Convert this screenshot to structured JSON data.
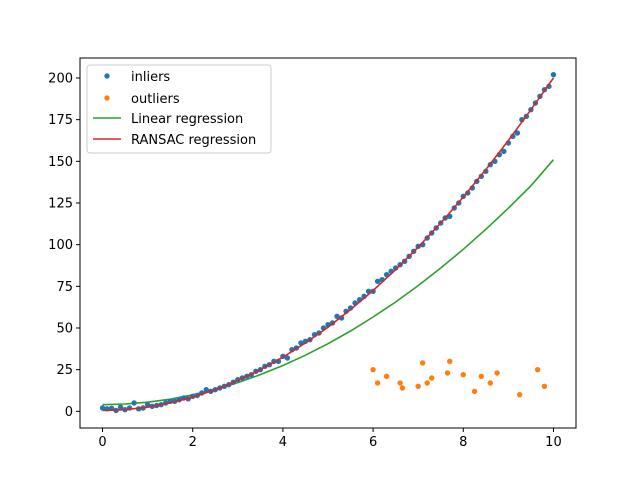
{
  "chart_data": {
    "type": "scatter",
    "xlim": [
      -0.5,
      10.5
    ],
    "ylim": [
      -10,
      212
    ],
    "xticks": [
      0,
      2,
      4,
      6,
      8,
      10
    ],
    "yticks": [
      0,
      25,
      50,
      75,
      100,
      125,
      150,
      175,
      200
    ],
    "legend_position": "top-left",
    "grid": false,
    "legend": {
      "inliers": "inliers",
      "outliers": "outliers",
      "linear": "Linear regression",
      "ransac": "RANSAC regression"
    },
    "colors": {
      "inliers": "#1f77b4",
      "outliers": "#ff7f0e",
      "linear": "#2ca02c",
      "ransac": "#d62728"
    },
    "inliers": {
      "x": [
        0.0,
        0.1,
        0.2,
        0.3,
        0.4,
        0.5,
        0.6,
        0.7,
        0.8,
        0.9,
        1.0,
        1.1,
        1.2,
        1.3,
        1.4,
        1.5,
        1.6,
        1.7,
        1.8,
        1.9,
        2.0,
        2.1,
        2.2,
        2.3,
        2.4,
        2.5,
        2.6,
        2.7,
        2.8,
        2.9,
        3.0,
        3.1,
        3.2,
        3.3,
        3.4,
        3.5,
        3.6,
        3.7,
        3.8,
        3.9,
        4.0,
        4.1,
        4.2,
        4.3,
        4.4,
        4.5,
        4.6,
        4.7,
        4.8,
        4.9,
        5.0,
        5.1,
        5.2,
        5.3,
        5.4,
        5.5,
        5.6,
        5.7,
        5.8,
        5.9,
        6.0,
        6.1,
        6.2,
        6.3,
        6.4,
        6.5,
        6.6,
        6.7,
        6.8,
        6.9,
        7.0,
        7.1,
        7.2,
        7.3,
        7.4,
        7.5,
        7.6,
        7.7,
        7.8,
        7.9,
        8.0,
        8.1,
        8.2,
        8.3,
        8.4,
        8.5,
        8.6,
        8.7,
        8.8,
        8.9,
        9.0,
        9.1,
        9.2,
        9.3,
        9.4,
        9.5,
        9.6,
        9.7,
        9.8,
        9.9,
        10.0
      ],
      "y": [
        2,
        1.5,
        1.8,
        0.5,
        2.5,
        1.0,
        2.0,
        5.0,
        1.5,
        2.0,
        4.0,
        3.0,
        3.5,
        4.0,
        5.0,
        6.0,
        6.0,
        7.0,
        8.0,
        7.5,
        9.0,
        9.5,
        11.0,
        13.0,
        12.0,
        13.0,
        14.0,
        15.0,
        16.0,
        17.5,
        19.0,
        20.0,
        21.0,
        22.0,
        24.0,
        25.0,
        27.0,
        28.0,
        30.0,
        30.0,
        33.0,
        32.0,
        37.0,
        38.0,
        41.0,
        42.0,
        43.0,
        46.0,
        47.0,
        50.0,
        52.0,
        53.0,
        57.0,
        56.0,
        60.0,
        62.0,
        65.0,
        67.0,
        69.0,
        72.0,
        72.0,
        78.0,
        79.0,
        82.0,
        84.0,
        86.0,
        88.0,
        90.0,
        93.0,
        96.0,
        99.0,
        100.0,
        104.0,
        107.0,
        110.0,
        113.0,
        116.0,
        117.0,
        122.0,
        125.0,
        129.0,
        131.0,
        134.0,
        138.0,
        141.0,
        144.0,
        148.0,
        150.0,
        154.0,
        156.0,
        161.0,
        165.0,
        167.0,
        175.0,
        177.0,
        181.0,
        185.0,
        189.0,
        193.0,
        195.0,
        202.0
      ]
    },
    "outliers": {
      "x": [
        6.0,
        6.1,
        6.3,
        6.6,
        6.65,
        7.0,
        7.1,
        7.2,
        7.3,
        7.65,
        7.7,
        8.0,
        8.25,
        8.4,
        8.6,
        8.75,
        9.25,
        9.65,
        9.8
      ],
      "y": [
        25,
        17,
        21,
        17,
        14,
        15,
        29,
        17,
        20,
        23,
        30,
        22,
        12,
        21,
        17,
        23,
        10,
        25,
        15
      ]
    },
    "linear": {
      "x": [
        0,
        0.5,
        1,
        1.5,
        2,
        2.5,
        3,
        3.5,
        4,
        4.5,
        5,
        5.5,
        6,
        6.5,
        7,
        7.5,
        8,
        8.5,
        9,
        9.5,
        10
      ],
      "y": [
        4.0,
        4.4,
        5.5,
        7.3,
        9.9,
        13.2,
        17.2,
        22.0,
        27.5,
        33.7,
        40.6,
        48.2,
        56.6,
        65.6,
        75.4,
        86.0,
        97.2,
        109.2,
        121.9,
        135.3,
        151.0
      ]
    },
    "ransac": {
      "x": [
        0,
        0.5,
        1,
        1.5,
        2,
        2.5,
        3,
        3.5,
        4,
        4.5,
        5,
        5.5,
        6,
        6.5,
        7,
        7.5,
        8,
        8.5,
        9,
        9.5,
        10
      ],
      "y": [
        0.5,
        1.0,
        2.5,
        5.0,
        8.5,
        13.0,
        18.5,
        25.0,
        32.5,
        41.0,
        50.5,
        61.0,
        72.5,
        85.0,
        98.5,
        113.0,
        128.5,
        145.0,
        162.5,
        181.0,
        200.0
      ]
    }
  }
}
